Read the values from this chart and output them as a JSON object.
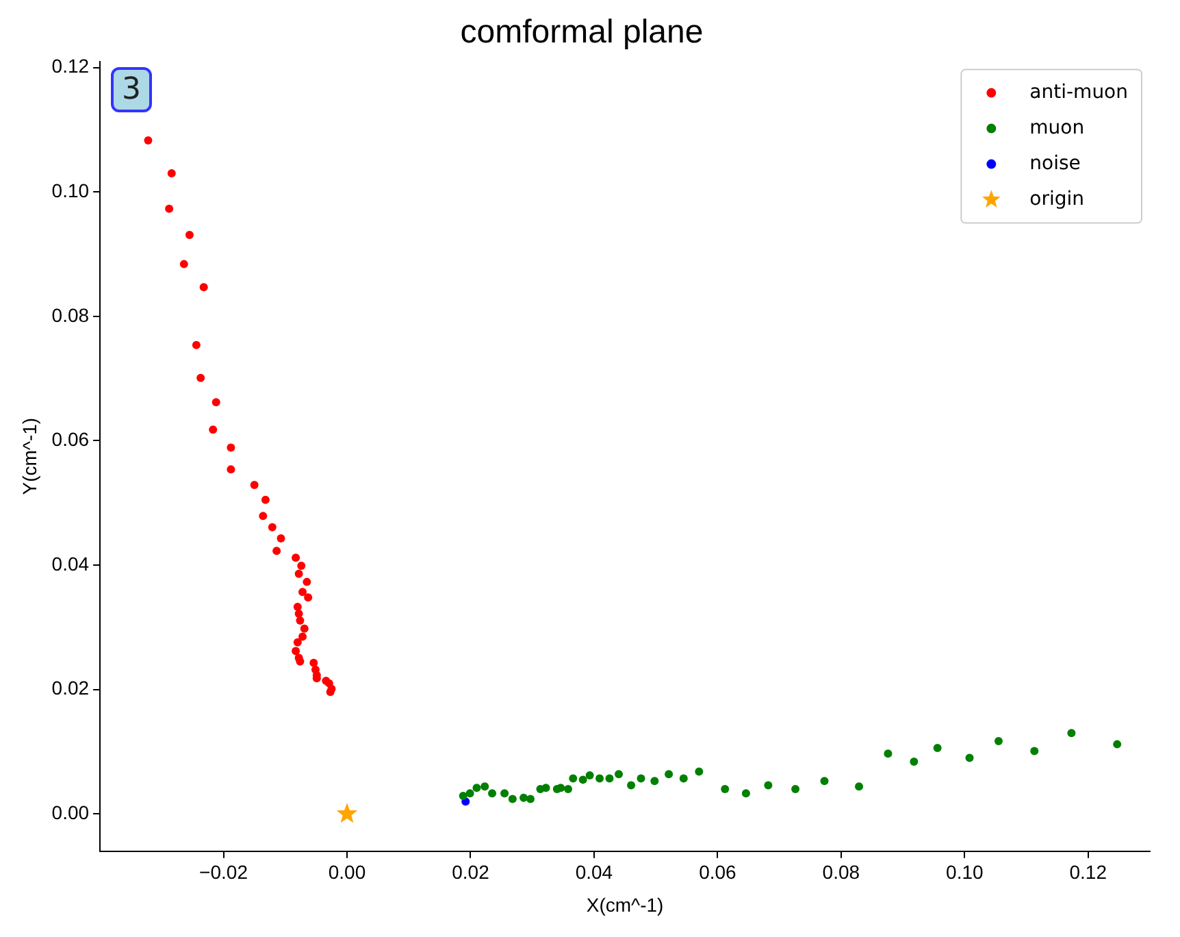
{
  "chart_data": {
    "type": "scatter",
    "title": "comformal plane",
    "xlabel": "X(cm^-1)",
    "ylabel": "Y(cm^-1)",
    "annotations": [
      "3"
    ],
    "legend": "top right",
    "marker": "circle",
    "grid": false,
    "xlim": [
      -0.04,
      0.13
    ],
    "xticks": [
      {
        "value": -0.02,
        "label": "−0.02"
      },
      {
        "value": 0,
        "label": "0.00"
      },
      {
        "value": 0.02,
        "label": "0.02"
      },
      {
        "value": 0.04,
        "label": "0.04"
      },
      {
        "value": 0.06,
        "label": "0.06"
      },
      {
        "value": 0.08,
        "label": "0.08"
      },
      {
        "value": 0.1,
        "label": "0.10"
      },
      {
        "value": 0.12,
        "label": "0.12"
      }
    ],
    "ylim": [
      -0.006,
      0.121
    ],
    "yticks": [
      {
        "value": 0,
        "label": "0.00"
      },
      {
        "value": 0.02,
        "label": "0.02"
      },
      {
        "value": 0.04,
        "label": "0.04"
      },
      {
        "value": 0.06,
        "label": "0.06"
      },
      {
        "value": 0.08,
        "label": "0.08"
      },
      {
        "value": 0.1,
        "label": "0.10"
      },
      {
        "value": 0.12,
        "label": "0.12"
      }
    ],
    "series": [
      {
        "name": "anti-muon",
        "color": "#ff0000",
        "x": [
          -0.0322,
          -0.0284,
          -0.0288,
          -0.0255,
          -0.0264,
          -0.0232,
          -0.0244,
          -0.0237,
          -0.0212,
          -0.0217,
          -0.0188,
          -0.0188,
          -0.015,
          -0.0132,
          -0.0136,
          -0.0121,
          -0.0107,
          -0.0114,
          -0.0083,
          -0.0074,
          -0.0078,
          -0.0065,
          -0.0072,
          -0.0063,
          -0.008,
          -0.0078,
          -0.0076,
          -0.0069,
          -0.0072,
          -0.008,
          -0.0083,
          -0.0078,
          -0.0076,
          -0.0054,
          -0.0051,
          -0.0049,
          -0.0049,
          -0.0034,
          -0.0029,
          -0.0025,
          -0.0027
        ],
        "values": [
          0.1083,
          0.103,
          0.0973,
          0.0931,
          0.0884,
          0.0847,
          0.0754,
          0.0701,
          0.0662,
          0.0618,
          0.0589,
          0.0554,
          0.0529,
          0.0505,
          0.0479,
          0.0461,
          0.0443,
          0.0423,
          0.0412,
          0.0399,
          0.0386,
          0.0373,
          0.0357,
          0.0348,
          0.0333,
          0.0322,
          0.0311,
          0.0298,
          0.0285,
          0.0276,
          0.0262,
          0.0251,
          0.0245,
          0.0243,
          0.0232,
          0.0223,
          0.0218,
          0.0214,
          0.021,
          0.0201,
          0.0196
        ]
      },
      {
        "name": "muon",
        "color": "#008000",
        "x": [
          0.0188,
          0.0199,
          0.021,
          0.0223,
          0.0235,
          0.0255,
          0.0268,
          0.0286,
          0.0297,
          0.0313,
          0.0322,
          0.034,
          0.0346,
          0.0358,
          0.0366,
          0.0382,
          0.0393,
          0.0409,
          0.0425,
          0.044,
          0.046,
          0.0476,
          0.0498,
          0.0521,
          0.0545,
          0.057,
          0.0612,
          0.0646,
          0.0682,
          0.0726,
          0.0773,
          0.0829,
          0.0876,
          0.0918,
          0.0956,
          0.1008,
          0.1055,
          0.1113,
          0.1173,
          0.1247
        ],
        "values": [
          0.0029,
          0.0033,
          0.0042,
          0.0044,
          0.0033,
          0.0033,
          0.0024,
          0.0026,
          0.0024,
          0.004,
          0.0042,
          0.004,
          0.0042,
          0.004,
          0.0057,
          0.0055,
          0.0062,
          0.0057,
          0.0057,
          0.0064,
          0.0046,
          0.0057,
          0.0053,
          0.0064,
          0.0057,
          0.0068,
          0.004,
          0.0033,
          0.0046,
          0.004,
          0.0053,
          0.0044,
          0.0097,
          0.0084,
          0.0106,
          0.009,
          0.0117,
          0.0101,
          0.013,
          0.0112
        ]
      },
      {
        "name": "noise",
        "color": "#0000ff",
        "x": [
          0.0192
        ],
        "values": [
          0.002
        ]
      },
      {
        "name": "origin",
        "color": "#ffa500",
        "marker": "star",
        "x": [
          0
        ],
        "values": [
          0
        ]
      }
    ]
  }
}
